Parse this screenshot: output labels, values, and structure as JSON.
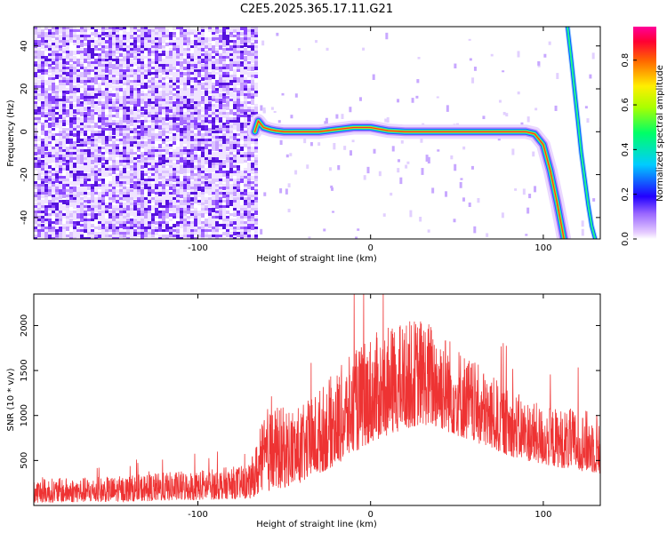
{
  "title": "C2E5.2025.365.17.11.G21",
  "chart_data": [
    {
      "type": "heatmap",
      "xlabel": "Height of straight line (km)",
      "ylabel": "Frequency (Hz)",
      "xlim": [
        -195,
        133
      ],
      "ylim": [
        -50,
        49
      ],
      "xticks": [
        -100,
        0,
        100
      ],
      "xtick_labels": [
        "-100",
        "0",
        "100"
      ],
      "yticks": [
        -40,
        -20,
        0,
        20,
        40
      ],
      "ytick_labels": [
        "-40",
        "-20",
        "0",
        "20",
        "40"
      ],
      "noise_region_x": [
        -195,
        -67
      ],
      "ridge": {
        "x": [
          -67,
          -65,
          -62,
          -58,
          -55,
          -50,
          -45,
          -40,
          -30,
          -20,
          -10,
          0,
          10,
          20,
          40,
          60,
          80,
          90,
          95,
          100,
          104,
          108,
          112
        ],
        "y": [
          0,
          5,
          2,
          1,
          0.5,
          0,
          0,
          0,
          0,
          1,
          2,
          2,
          0.5,
          0,
          0,
          0,
          0,
          0,
          -1,
          -6,
          -18,
          -33,
          -50
        ]
      },
      "second_ridge": {
        "x": [
          114,
          116,
          118,
          120,
          122,
          124,
          126,
          128,
          130
        ],
        "y": [
          49,
          35,
          20,
          5,
          -10,
          -22,
          -34,
          -44,
          -50
        ]
      },
      "colorbar": {
        "label": "Normalized spectral amplitude",
        "ticks": [
          0.0,
          0.2,
          0.4,
          0.6,
          0.8
        ],
        "tick_labels": [
          "0.0",
          "0.2",
          "0.4",
          "0.6",
          "0.8"
        ],
        "range": [
          0,
          0.95
        ]
      }
    },
    {
      "type": "line",
      "xlabel": "Height of straight line (km)",
      "ylabel": "SNR (10 * v/v)",
      "xlim": [
        -195,
        133
      ],
      "ylim": [
        0,
        2350
      ],
      "xticks": [
        -100,
        0,
        100
      ],
      "xtick_labels": [
        "-100",
        "0",
        "100"
      ],
      "yticks": [
        500,
        1000,
        1500,
        2000
      ],
      "ytick_labels": [
        "500",
        "1000",
        "1500",
        "2000"
      ],
      "color": "#ee3333",
      "envelope": {
        "x": [
          -195,
          -150,
          -100,
          -70,
          -60,
          -40,
          -20,
          0,
          20,
          30,
          40,
          60,
          80,
          100,
          133
        ],
        "lower": [
          30,
          40,
          60,
          80,
          150,
          250,
          450,
          700,
          850,
          900,
          850,
          700,
          550,
          450,
          350
        ],
        "upper": [
          300,
          320,
          400,
          450,
          1100,
          1100,
          1500,
          1900,
          2050,
          2100,
          2000,
          1600,
          1300,
          1100,
          1050
        ]
      }
    }
  ]
}
